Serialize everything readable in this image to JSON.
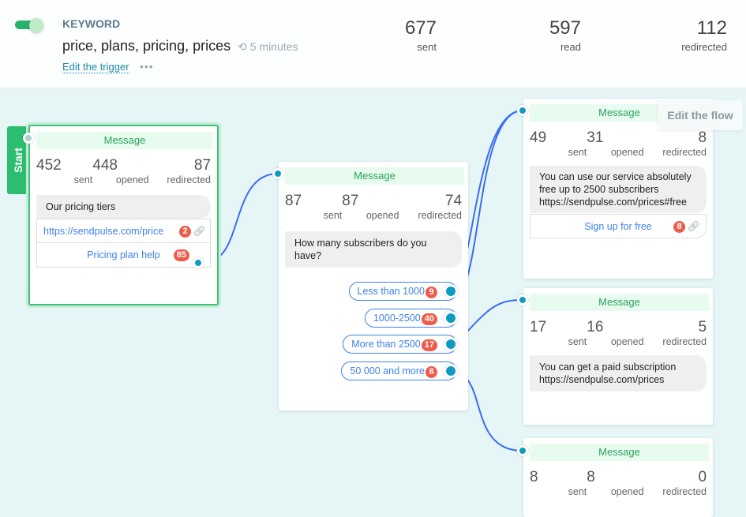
{
  "header": {
    "toggle_on": true,
    "label": "KEYWORD",
    "keywords": "price, plans, pricing, prices",
    "delay": "5 minutes",
    "edit_trigger": "Edit the trigger",
    "more": "•••",
    "stats": [
      {
        "value": "677",
        "label": "sent"
      },
      {
        "value": "597",
        "label": "read"
      },
      {
        "value": "112",
        "label": "redirected"
      }
    ]
  },
  "start_label": "Start",
  "edit_flow": "Edit the flow",
  "nodes": [
    {
      "title": "Message",
      "stats": [
        {
          "value": "452",
          "label": "sent"
        },
        {
          "value": "448",
          "label": "opened"
        },
        {
          "value": "87",
          "label": "redirected"
        }
      ],
      "text": "Our pricing tiers",
      "buttons": [
        {
          "label": "https://sendpulse.com/price",
          "count": "2"
        },
        {
          "label": "Pricing plan help",
          "count": "85"
        }
      ]
    },
    {
      "title": "Message",
      "stats": [
        {
          "value": "87",
          "label": "sent"
        },
        {
          "value": "87",
          "label": "opened"
        },
        {
          "value": "74",
          "label": "redirected"
        }
      ],
      "text": "How many subscribers do you have?",
      "replies": [
        {
          "label": "Less than 1000",
          "count": "9"
        },
        {
          "label": "1000-2500",
          "count": "40"
        },
        {
          "label": "More than 2500",
          "count": "17"
        },
        {
          "label": "50 000 and more",
          "count": "8"
        }
      ]
    },
    {
      "title": "Message",
      "stats": [
        {
          "value": "49",
          "label": "sent"
        },
        {
          "value": "31",
          "label": "opened"
        },
        {
          "value": "8",
          "label": "redirected"
        }
      ],
      "text": "You can use our service absolutely free up to 2500 subscribers https://sendpulse.com/prices#free",
      "buttons": [
        {
          "label": "Sign up for free",
          "count": "8"
        }
      ]
    },
    {
      "title": "Message",
      "stats": [
        {
          "value": "17",
          "label": "sent"
        },
        {
          "value": "16",
          "label": "opened"
        },
        {
          "value": "5",
          "label": "redirected"
        }
      ],
      "text": "You can get a paid subscription https://sendpulse.com/prices"
    },
    {
      "title": "Message",
      "stats": [
        {
          "value": "8",
          "label": "sent"
        },
        {
          "value": "8",
          "label": "opened"
        },
        {
          "value": "0",
          "label": "redirected"
        }
      ]
    }
  ],
  "colors": {
    "accent_green": "#2dbd6e",
    "link_blue": "#3e82e8",
    "badge_red": "#ef5b4a",
    "port": "#0e9bc0",
    "canvas": "#e6f6f7"
  }
}
